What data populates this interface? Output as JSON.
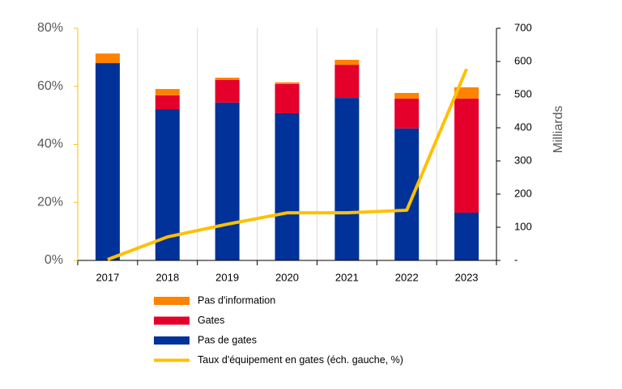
{
  "chart_data": {
    "type": "bar",
    "stacked": true,
    "categories": [
      "2017",
      "2018",
      "2019",
      "2020",
      "2021",
      "2022",
      "2023"
    ],
    "series": [
      {
        "name": "Pas d'information",
        "type": "bar",
        "axis": "y2",
        "color": "#ff8200",
        "values": [
          29,
          19,
          7,
          5,
          15,
          17,
          34
        ]
      },
      {
        "name": "Gates",
        "type": "bar",
        "axis": "y2",
        "color": "#e4002b",
        "values": [
          0,
          42,
          68,
          88,
          100,
          90,
          344
        ]
      },
      {
        "name": "Pas de gates",
        "type": "bar",
        "axis": "y2",
        "color": "#003299",
        "values": [
          595,
          456,
          476,
          444,
          490,
          398,
          144
        ]
      },
      {
        "name": "Taux d'équipement en gates (éch. gauche, %)",
        "type": "line",
        "axis": "y",
        "color": "#ffc000",
        "values": [
          0.3,
          8.1,
          12.5,
          16.4,
          16.4,
          17.3,
          66
        ]
      }
    ],
    "ylim": [
      0,
      80
    ],
    "yticks": [
      {
        "value": 0,
        "label": "0%"
      },
      {
        "value": 20,
        "label": "20%"
      },
      {
        "value": 40,
        "label": "40%"
      },
      {
        "value": 60,
        "label": "60%"
      },
      {
        "value": 80,
        "label": "80%"
      }
    ],
    "y2lim": [
      0,
      700
    ],
    "y2ticks": [
      {
        "value": 0,
        "label": "-"
      },
      100,
      200,
      300,
      400,
      500,
      600,
      700
    ],
    "y2label": "Milliards",
    "grid": "vertical"
  }
}
